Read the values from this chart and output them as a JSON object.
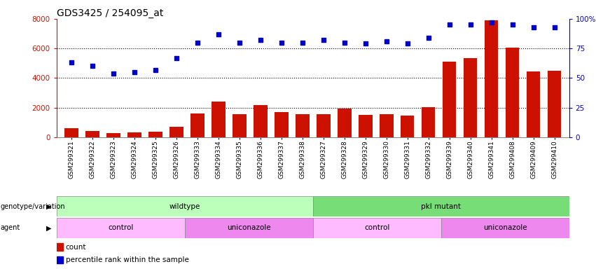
{
  "title": "GDS3425 / 254095_at",
  "samples": [
    "GSM299321",
    "GSM299322",
    "GSM299323",
    "GSM299324",
    "GSM299325",
    "GSM299326",
    "GSM299333",
    "GSM299334",
    "GSM299335",
    "GSM299336",
    "GSM299337",
    "GSM299338",
    "GSM299327",
    "GSM299328",
    "GSM299329",
    "GSM299330",
    "GSM299331",
    "GSM299332",
    "GSM299339",
    "GSM299340",
    "GSM299341",
    "GSM299408",
    "GSM299409",
    "GSM299410"
  ],
  "counts": [
    600,
    430,
    280,
    310,
    380,
    700,
    1600,
    2400,
    1550,
    2150,
    1700,
    1550,
    1550,
    1950,
    1500,
    1550,
    1450,
    2050,
    5100,
    5350,
    7900,
    6050,
    4450,
    4500
  ],
  "percentile": [
    63,
    60,
    54,
    55,
    57,
    67,
    80,
    87,
    80,
    82,
    80,
    80,
    82,
    80,
    79,
    81,
    79,
    84,
    95,
    95,
    97,
    95,
    93,
    93
  ],
  "ylim_left": [
    0,
    8000
  ],
  "ylim_right": [
    0,
    100
  ],
  "yticks_left": [
    0,
    2000,
    4000,
    6000,
    8000
  ],
  "yticks_right": [
    0,
    25,
    50,
    75,
    100
  ],
  "bar_color": "#cc1100",
  "dot_color": "#0000cc",
  "genotype_groups": [
    {
      "label": "wildtype",
      "start": 0,
      "end": 12,
      "color": "#bbffbb"
    },
    {
      "label": "pkl mutant",
      "start": 12,
      "end": 24,
      "color": "#77dd77"
    }
  ],
  "agent_groups": [
    {
      "label": "control",
      "start": 0,
      "end": 6,
      "color": "#ffbbff"
    },
    {
      "label": "uniconazole",
      "start": 6,
      "end": 12,
      "color": "#ee88ee"
    },
    {
      "label": "control",
      "start": 12,
      "end": 18,
      "color": "#ffbbff"
    },
    {
      "label": "uniconazole",
      "start": 18,
      "end": 24,
      "color": "#ee88ee"
    }
  ],
  "xlabel_fontsize": 6.5,
  "title_fontsize": 10,
  "tick_fontsize": 7.5
}
